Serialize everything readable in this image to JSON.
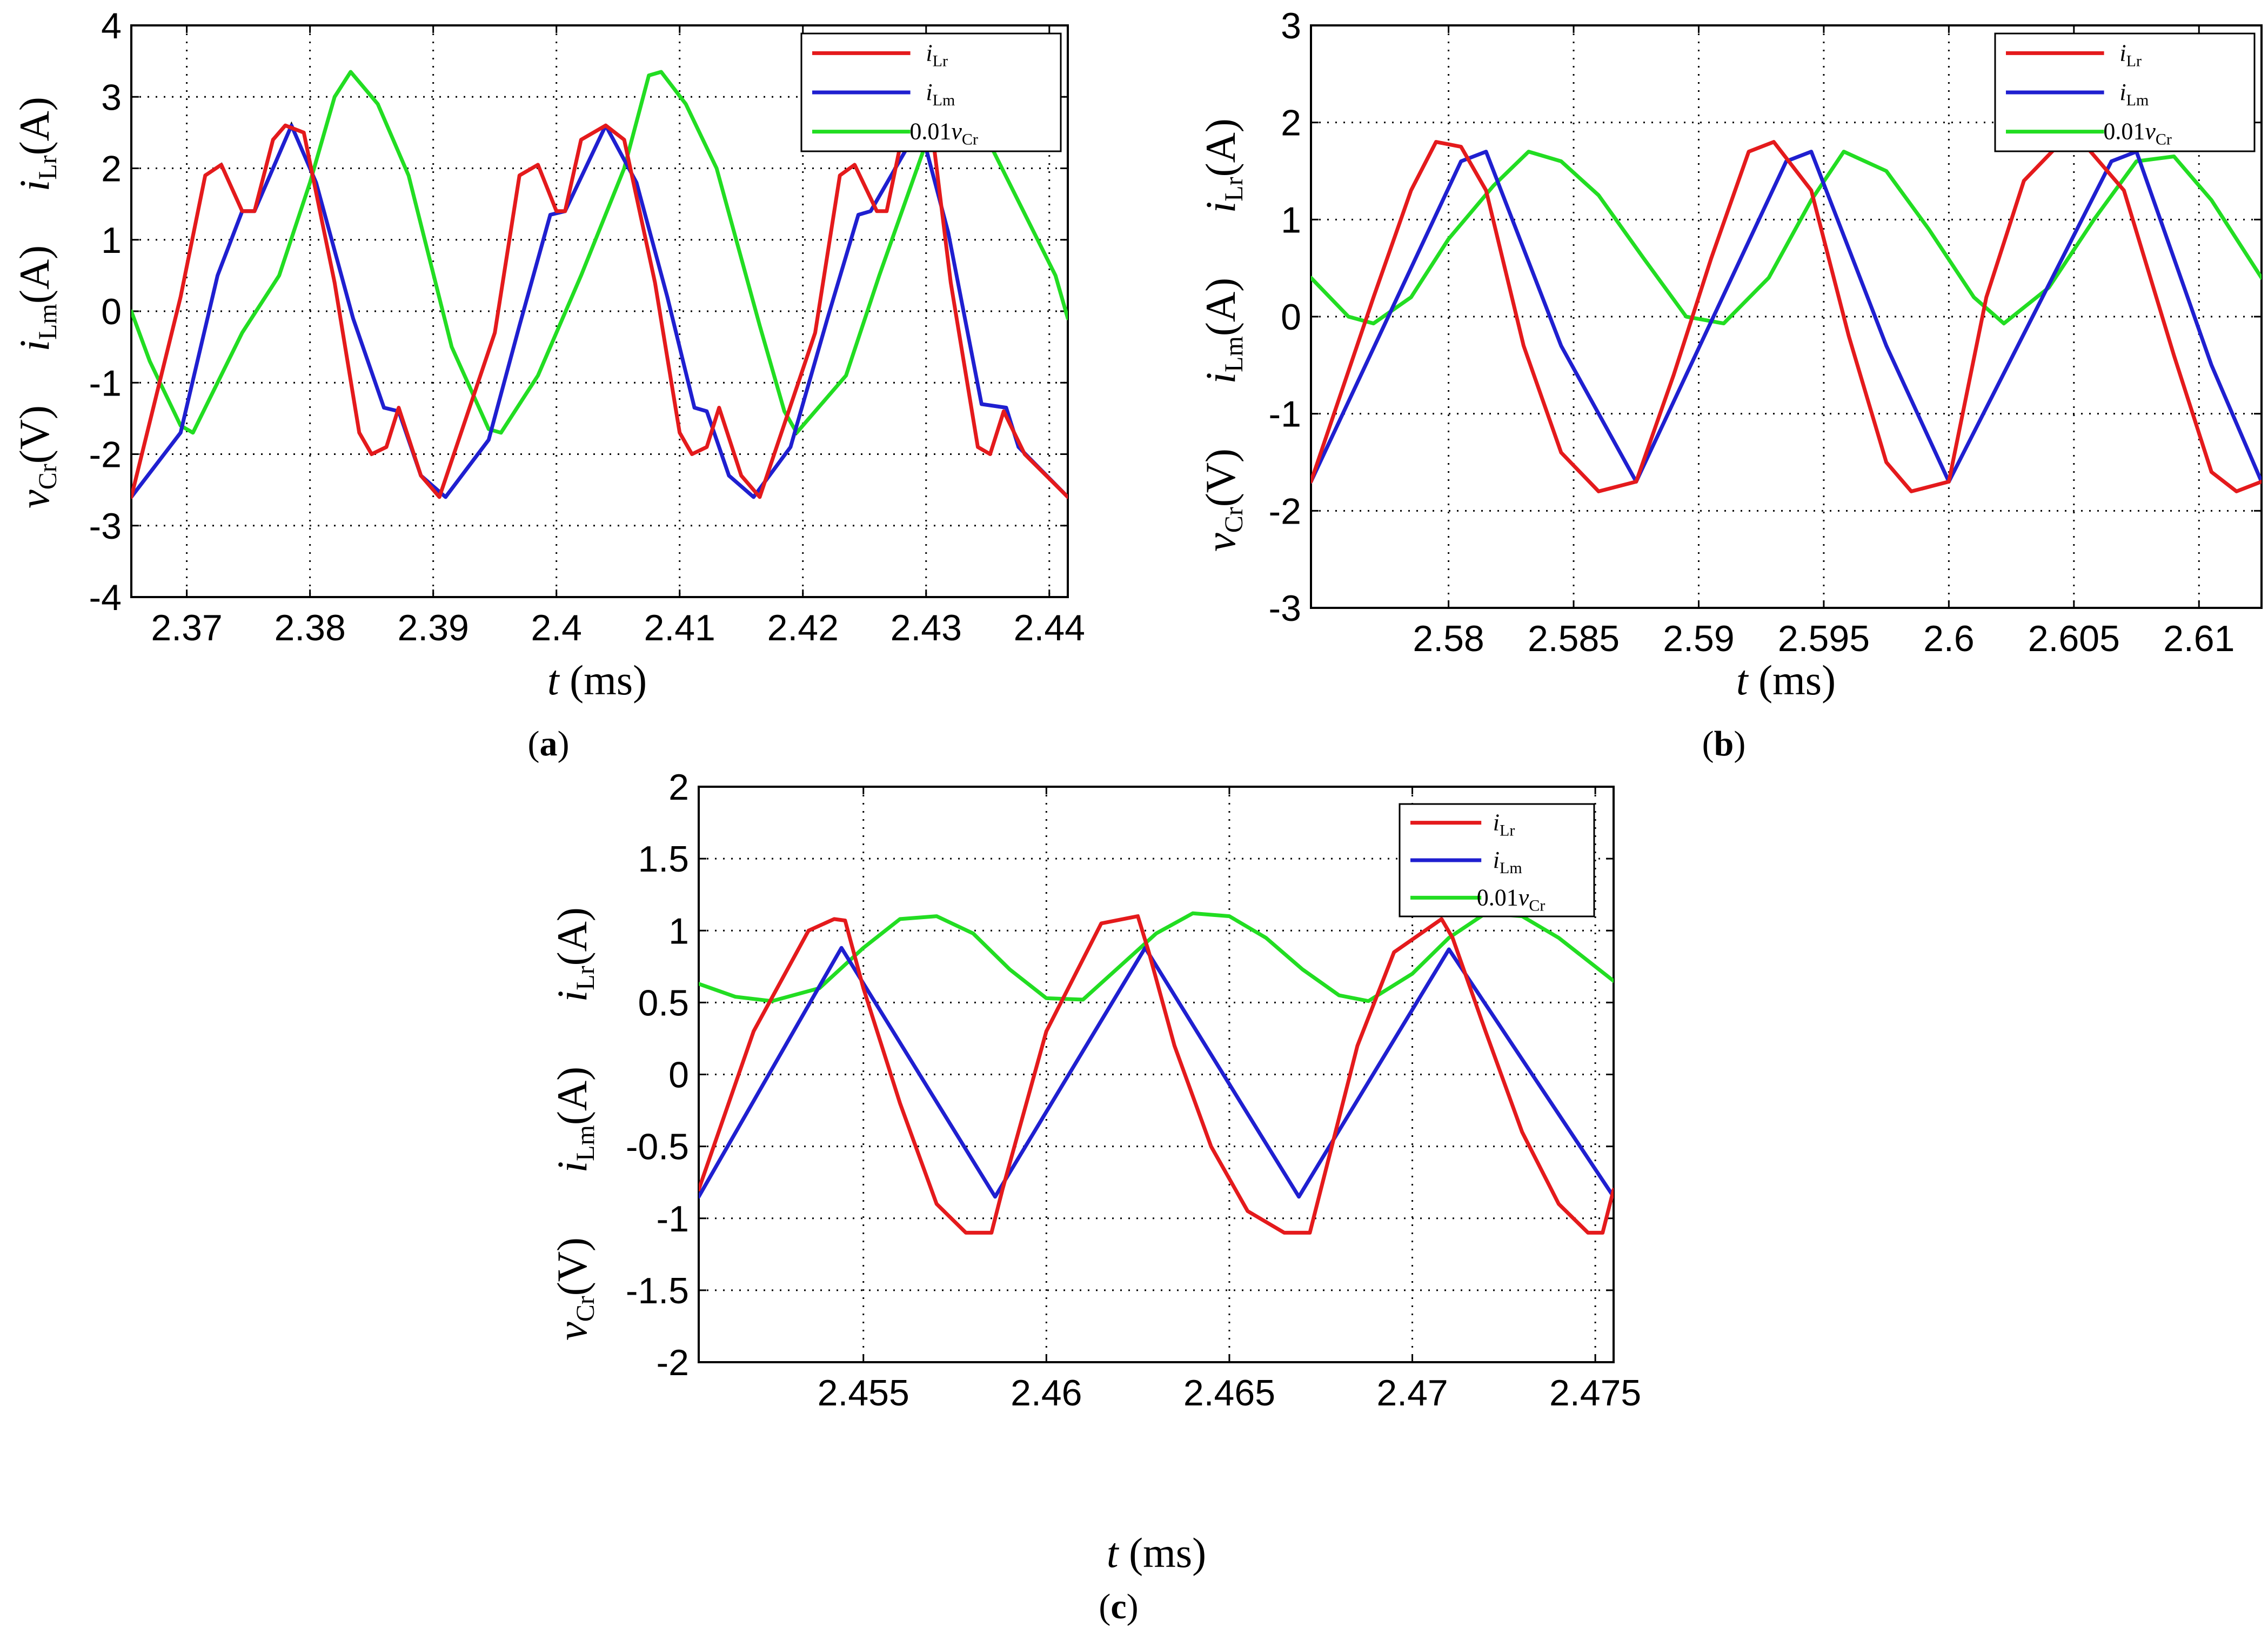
{
  "figure": {
    "legend_labels": [
      {
        "main": "i",
        "sub": "Lr",
        "color": "#e41a1c"
      },
      {
        "main": "i",
        "sub": "Lm",
        "color": "#1f1fd0"
      },
      {
        "main": "0.01v",
        "sub": "Cr",
        "color": "#22dd22"
      }
    ],
    "x_label": {
      "italic": "t",
      "rest": " (ms)"
    }
  },
  "chart_data": [
    {
      "panel_label": "a",
      "type": "line",
      "xlim": [
        2.3655,
        2.4415
      ],
      "ylim": [
        -4,
        4
      ],
      "x_ticks": [
        {
          "v": 2.37,
          "t": "2.37"
        },
        {
          "v": 2.38,
          "t": "2.38"
        },
        {
          "v": 2.39,
          "t": "2.39"
        },
        {
          "v": 2.4,
          "t": "2.4"
        },
        {
          "v": 2.41,
          "t": "2.41"
        },
        {
          "v": 2.42,
          "t": "2.42"
        },
        {
          "v": 2.43,
          "t": "2.43"
        },
        {
          "v": 2.44,
          "t": "2.44"
        }
      ],
      "y_ticks": [
        {
          "v": 4,
          "t": "4"
        },
        {
          "v": 3,
          "t": "3"
        },
        {
          "v": 2,
          "t": "2"
        },
        {
          "v": 1,
          "t": "1"
        },
        {
          "v": 0,
          "t": "0"
        },
        {
          "v": -1,
          "t": "-1"
        },
        {
          "v": -2,
          "t": "-2"
        },
        {
          "v": -3,
          "t": "-3"
        },
        {
          "v": -4,
          "t": "-4"
        }
      ],
      "grid": true,
      "legend_position": "top-right",
      "series": [
        {
          "name": "iLr",
          "color": "#e41a1c",
          "x": [
            2.3655,
            2.3695,
            2.3715,
            2.3728,
            2.3745,
            2.3755,
            2.377,
            2.378,
            2.3795,
            2.382,
            2.384,
            2.385,
            2.3862,
            2.3872,
            2.389,
            2.3905,
            2.395,
            2.397,
            2.3985,
            2.4,
            2.4007,
            2.402,
            2.404,
            2.4055,
            2.408,
            2.41,
            2.411,
            2.4122,
            2.4132,
            2.415,
            2.4165,
            2.421,
            2.423,
            2.4242,
            2.426,
            2.4268,
            2.428,
            2.4305,
            2.432,
            2.4342,
            2.4352,
            2.4363,
            2.438,
            2.4415
          ],
          "y": [
            -2.6,
            0.2,
            1.9,
            2.05,
            1.4,
            1.4,
            2.4,
            2.6,
            2.5,
            0.4,
            -1.7,
            -2.0,
            -1.9,
            -1.35,
            -2.3,
            -2.6,
            -0.3,
            1.9,
            2.05,
            1.4,
            1.4,
            2.4,
            2.6,
            2.4,
            0.4,
            -1.7,
            -2.0,
            -1.9,
            -1.35,
            -2.3,
            -2.6,
            -0.3,
            1.9,
            2.05,
            1.4,
            1.4,
            2.4,
            2.5,
            0.4,
            -1.9,
            -2.0,
            -1.4,
            -2.0,
            -2.6
          ]
        },
        {
          "name": "iLm",
          "color": "#1f1fd0",
          "x": [
            2.3655,
            2.3695,
            2.3725,
            2.3745,
            2.3755,
            2.3785,
            2.3805,
            2.3835,
            2.386,
            2.3872,
            2.389,
            2.391,
            2.3945,
            2.397,
            2.3995,
            2.4007,
            2.404,
            2.4065,
            2.409,
            2.4112,
            2.4122,
            2.414,
            2.416,
            2.419,
            2.422,
            2.4245,
            2.4255,
            2.4295,
            2.4318,
            2.4345,
            2.4365,
            2.4375,
            2.4415
          ],
          "y": [
            -2.6,
            -1.7,
            0.5,
            1.4,
            1.4,
            2.6,
            1.8,
            -0.1,
            -1.35,
            -1.4,
            -2.3,
            -2.6,
            -1.8,
            -0.2,
            1.35,
            1.4,
            2.6,
            1.8,
            0.2,
            -1.35,
            -1.4,
            -2.3,
            -2.6,
            -1.9,
            -0.1,
            1.35,
            1.4,
            2.6,
            1.1,
            -1.3,
            -1.35,
            -1.9,
            -2.6
          ]
        },
        {
          "name": "0.01vCr",
          "color": "#22dd22",
          "x": [
            2.3655,
            2.367,
            2.3695,
            2.3705,
            2.3745,
            2.3775,
            2.38,
            2.382,
            2.3833,
            2.3855,
            2.388,
            2.3915,
            2.3945,
            2.3955,
            2.3985,
            2.402,
            2.4055,
            2.4075,
            2.4085,
            2.4105,
            2.413,
            2.4165,
            2.4185,
            2.4195,
            2.4235,
            2.4262,
            2.4305,
            2.435,
            2.4405,
            2.4415
          ],
          "y": [
            0.0,
            -0.7,
            -1.6,
            -1.7,
            -0.3,
            0.5,
            1.8,
            3.0,
            3.35,
            2.9,
            1.9,
            -0.5,
            -1.65,
            -1.7,
            -0.9,
            0.5,
            2.0,
            3.3,
            3.35,
            2.9,
            2.0,
            -0.2,
            -1.4,
            -1.7,
            -0.9,
            0.5,
            2.6,
            2.4,
            0.5,
            -0.1
          ]
        }
      ]
    },
    {
      "panel_label": "b",
      "type": "line",
      "xlim": [
        2.5745,
        2.6125
      ],
      "ylim": [
        -3,
        3
      ],
      "x_ticks": [
        {
          "v": 2.58,
          "t": "2.58"
        },
        {
          "v": 2.585,
          "t": "2.585"
        },
        {
          "v": 2.59,
          "t": "2.59"
        },
        {
          "v": 2.595,
          "t": "2.595"
        },
        {
          "v": 2.6,
          "t": "2.6"
        },
        {
          "v": 2.605,
          "t": "2.605"
        },
        {
          "v": 2.61,
          "t": "2.61"
        }
      ],
      "y_ticks": [
        {
          "v": 3,
          "t": "3"
        },
        {
          "v": 2,
          "t": "2"
        },
        {
          "v": 1,
          "t": "1"
        },
        {
          "v": 0,
          "t": "0"
        },
        {
          "v": -1,
          "t": "-1"
        },
        {
          "v": -2,
          "t": "-2"
        },
        {
          "v": -3,
          "t": "-3"
        }
      ],
      "grid": true,
      "legend_position": "top-right",
      "series": [
        {
          "name": "iLr",
          "color": "#e41a1c",
          "x": [
            2.5745,
            2.577,
            2.5785,
            2.5795,
            2.5805,
            2.5815,
            2.583,
            2.5845,
            2.586,
            2.5875,
            2.589,
            2.5905,
            2.592,
            2.593,
            2.5945,
            2.596,
            2.5975,
            2.5985,
            2.6,
            2.6015,
            2.603,
            2.6045,
            2.6055,
            2.607,
            2.609,
            2.6105,
            2.6115,
            2.6125
          ],
          "y": [
            -1.7,
            0.2,
            1.3,
            1.8,
            1.75,
            1.3,
            -0.3,
            -1.4,
            -1.8,
            -1.7,
            -0.6,
            0.6,
            1.7,
            1.8,
            1.3,
            -0.2,
            -1.5,
            -1.8,
            -1.7,
            0.2,
            1.4,
            1.8,
            1.75,
            1.3,
            -0.4,
            -1.6,
            -1.8,
            -1.7
          ]
        },
        {
          "name": "iLm",
          "color": "#1f1fd0",
          "x": [
            2.5745,
            2.5805,
            2.5815,
            2.5845,
            2.5875,
            2.5935,
            2.5945,
            2.5975,
            2.6,
            2.6065,
            2.6075,
            2.6105,
            2.6125
          ],
          "y": [
            -1.7,
            1.6,
            1.7,
            -0.3,
            -1.7,
            1.6,
            1.7,
            -0.3,
            -1.7,
            1.6,
            1.7,
            -0.5,
            -1.7
          ]
        },
        {
          "name": "0.01vCr",
          "color": "#22dd22",
          "x": [
            2.5745,
            2.576,
            2.577,
            2.5785,
            2.58,
            2.5818,
            2.5832,
            2.5845,
            2.586,
            2.5878,
            2.5895,
            2.591,
            2.5928,
            2.5945,
            2.5958,
            2.5975,
            2.5992,
            2.601,
            2.6022,
            2.604,
            2.6058,
            2.6075,
            2.609,
            2.6105,
            2.6125
          ],
          "y": [
            0.4,
            0.0,
            -0.07,
            0.2,
            0.8,
            1.35,
            1.7,
            1.6,
            1.25,
            0.6,
            0.0,
            -0.07,
            0.4,
            1.2,
            1.7,
            1.5,
            0.9,
            0.2,
            -0.07,
            0.3,
            1.0,
            1.6,
            1.65,
            1.2,
            0.4
          ]
        }
      ]
    },
    {
      "panel_label": "c",
      "type": "line",
      "xlim": [
        2.4505,
        2.4755
      ],
      "ylim": [
        -2,
        2
      ],
      "x_ticks": [
        {
          "v": 2.455,
          "t": "2.455"
        },
        {
          "v": 2.46,
          "t": "2.46"
        },
        {
          "v": 2.465,
          "t": "2.465"
        },
        {
          "v": 2.47,
          "t": "2.47"
        },
        {
          "v": 2.475,
          "t": "2.475"
        }
      ],
      "y_ticks": [
        {
          "v": 2,
          "t": "2"
        },
        {
          "v": 1.5,
          "t": "1.5"
        },
        {
          "v": 1,
          "t": "1"
        },
        {
          "v": 0.5,
          "t": "0.5"
        },
        {
          "v": 0,
          "t": "0"
        },
        {
          "v": -0.5,
          "t": "-0.5"
        },
        {
          "v": -1,
          "t": "-1"
        },
        {
          "v": -1.5,
          "t": "-1.5"
        },
        {
          "v": -2,
          "t": "-2"
        }
      ],
      "grid": true,
      "legend_position": "top-right",
      "series": [
        {
          "name": "iLr",
          "color": "#e41a1c",
          "x": [
            2.4505,
            2.452,
            2.4535,
            2.4542,
            2.4545,
            2.455,
            2.456,
            2.457,
            2.4578,
            2.4585,
            2.4588,
            2.46,
            2.4615,
            2.4625,
            2.4628,
            2.4635,
            2.4645,
            2.4655,
            2.4665,
            2.4672,
            2.4675,
            2.4685,
            2.4695,
            2.4708,
            2.4711,
            2.472,
            2.473,
            2.474,
            2.4748,
            2.4752,
            2.4755
          ],
          "y": [
            -0.8,
            0.3,
            1.0,
            1.08,
            1.07,
            0.6,
            -0.2,
            -0.9,
            -1.1,
            -1.1,
            -0.8,
            0.3,
            1.05,
            1.1,
            0.85,
            0.2,
            -0.5,
            -0.95,
            -1.1,
            -1.1,
            -0.8,
            0.2,
            0.85,
            1.08,
            0.95,
            0.3,
            -0.4,
            -0.9,
            -1.1,
            -1.1,
            -0.8
          ]
        },
        {
          "name": "iLm",
          "color": "#1f1fd0",
          "x": [
            2.4505,
            2.4544,
            2.4586,
            2.4627,
            2.4669,
            2.471,
            2.4755
          ],
          "y": [
            -0.85,
            0.88,
            -0.85,
            0.88,
            -0.85,
            0.87,
            -0.85
          ]
        },
        {
          "name": "0.01vCr",
          "color": "#22dd22",
          "x": [
            2.4505,
            2.4515,
            2.4525,
            2.4538,
            2.455,
            2.456,
            2.457,
            2.458,
            2.459,
            2.46,
            2.461,
            2.462,
            2.463,
            2.464,
            2.465,
            2.466,
            2.467,
            2.468,
            2.4688,
            2.47,
            2.471,
            2.472,
            2.473,
            2.474,
            2.4755
          ],
          "y": [
            0.63,
            0.54,
            0.51,
            0.6,
            0.88,
            1.08,
            1.1,
            0.98,
            0.73,
            0.53,
            0.52,
            0.75,
            0.98,
            1.12,
            1.1,
            0.95,
            0.73,
            0.55,
            0.51,
            0.7,
            0.95,
            1.12,
            1.1,
            0.95,
            0.65
          ]
        }
      ]
    }
  ]
}
